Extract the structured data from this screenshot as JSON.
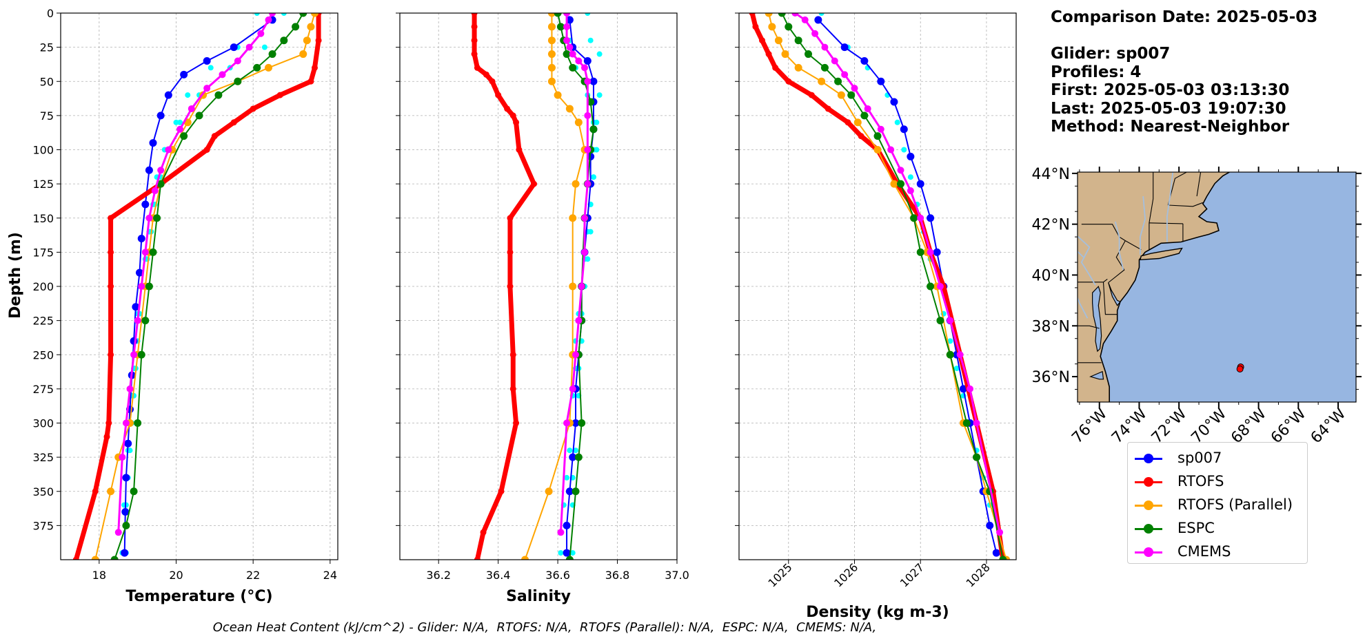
{
  "info": {
    "date_line": "Comparison Date: 2025-05-03",
    "glider_line": "Glider: sp007",
    "profiles_line": "Profiles: 4",
    "first_line": "First: 2025-05-03 03:13:30",
    "last_line": "Last: 2025-05-03 19:07:30",
    "method_line": "Method: Nearest-Neighbor"
  },
  "footer": "Ocean Heat Content (kJ/cm^2) - Glider: N/A,  RTOFS: N/A,  RTOFS (Parallel): N/A,  ESPC: N/A,  CMEMS: N/A,",
  "legend": [
    {
      "name": "sp007",
      "color": "#0000ff"
    },
    {
      "name": "RTOFS",
      "color": "#ff0000"
    },
    {
      "name": "RTOFS (Parallel)",
      "color": "#ffa500"
    },
    {
      "name": "ESPC",
      "color": "#008000"
    },
    {
      "name": "CMEMS",
      "color": "#ff00ff"
    }
  ],
  "chart_data": [
    {
      "type": "line",
      "xlabel": "Temperature (°C)",
      "ylabel": "Depth (m)",
      "xlim": [
        17,
        24.2
      ],
      "ylim": [
        400,
        0
      ],
      "xticks": [
        18,
        20,
        22,
        24
      ],
      "yticks": [
        0,
        25,
        50,
        75,
        100,
        125,
        150,
        175,
        200,
        225,
        250,
        275,
        300,
        325,
        350,
        375
      ],
      "grid": true,
      "series": [
        {
          "name": "sp007 (individual profiles)",
          "color": "#00ffff",
          "style": "dots",
          "x": [
            22.1,
            21.6,
            20.9,
            20.3,
            20.0,
            19.7,
            19.5,
            19.4,
            19.3,
            19.2,
            19.1,
            19.0,
            18.95,
            18.9,
            18.85,
            18.8,
            18.75,
            18.7,
            18.65,
            18.6
          ],
          "y": [
            0,
            25,
            40,
            60,
            80,
            100,
            120,
            140,
            160,
            180,
            200,
            220,
            240,
            260,
            280,
            300,
            320,
            340,
            360,
            395
          ]
        },
        {
          "name": "sp007 (individual profiles)",
          "color": "#00ffff",
          "style": "dots",
          "x": [
            22.8,
            22.3,
            21.4,
            20.6,
            20.1,
            19.8,
            19.6,
            19.45,
            19.35,
            19.25,
            19.15,
            19.05,
            19.0,
            18.95,
            18.9,
            18.85,
            18.8,
            18.75,
            18.7,
            18.7
          ],
          "y": [
            0,
            25,
            40,
            60,
            80,
            100,
            120,
            140,
            160,
            180,
            200,
            220,
            240,
            260,
            280,
            300,
            320,
            340,
            360,
            395
          ]
        },
        {
          "name": "sp007",
          "color": "#0000ff",
          "x": [
            22.5,
            21.5,
            20.8,
            20.2,
            19.8,
            19.6,
            19.4,
            19.3,
            19.2,
            19.1,
            19.05,
            18.95,
            18.9,
            18.85,
            18.8,
            18.75,
            18.7,
            18.68,
            18.66
          ],
          "y": [
            5,
            25,
            35,
            45,
            60,
            75,
            95,
            115,
            140,
            165,
            190,
            215,
            240,
            265,
            290,
            315,
            340,
            365,
            395
          ]
        },
        {
          "name": "RTOFS",
          "color": "#ff0000",
          "x": [
            23.7,
            23.7,
            23.6,
            23.5,
            22.7,
            22.0,
            21.5,
            21.0,
            20.8,
            19.6,
            18.3,
            18.3,
            18.3,
            18.3,
            18.25,
            18.2,
            17.9,
            17.4
          ],
          "y": [
            0,
            20,
            40,
            50,
            60,
            70,
            80,
            90,
            100,
            125,
            150,
            175,
            200,
            250,
            300,
            310,
            350,
            400
          ]
        },
        {
          "name": "RTOFS (Parallel)",
          "color": "#ffa500",
          "x": [
            23.6,
            23.5,
            23.4,
            23.3,
            22.4,
            21.6,
            20.7,
            20.3,
            19.9,
            19.6,
            19.4,
            19.3,
            19.2,
            19.0,
            18.8,
            18.5,
            18.3,
            17.9
          ],
          "y": [
            0,
            10,
            20,
            30,
            40,
            50,
            60,
            80,
            100,
            125,
            150,
            175,
            200,
            250,
            300,
            325,
            350,
            400
          ]
        },
        {
          "name": "ESPC",
          "color": "#008000",
          "x": [
            23.3,
            23.1,
            22.8,
            22.5,
            22.1,
            21.6,
            21.1,
            20.6,
            20.2,
            19.6,
            19.5,
            19.4,
            19.3,
            19.2,
            19.1,
            19.0,
            18.9,
            18.7,
            18.4
          ],
          "y": [
            0,
            10,
            20,
            30,
            40,
            50,
            60,
            75,
            90,
            125,
            150,
            175,
            200,
            225,
            250,
            300,
            350,
            375,
            400
          ]
        },
        {
          "name": "CMEMS",
          "color": "#ff00ff",
          "x": [
            22.5,
            22.4,
            22.2,
            21.9,
            21.6,
            21.2,
            20.8,
            20.4,
            20.1,
            19.8,
            19.6,
            19.45,
            19.3,
            19.2,
            19.1,
            19.0,
            18.9,
            18.8,
            18.7,
            18.6,
            18.5
          ],
          "y": [
            0,
            5,
            15,
            25,
            35,
            45,
            55,
            70,
            85,
            100,
            115,
            130,
            150,
            175,
            200,
            225,
            250,
            275,
            300,
            325,
            380
          ]
        }
      ]
    },
    {
      "type": "line",
      "xlabel": "Salinity",
      "ylabel": "",
      "xlim": [
        36.07,
        37.0
      ],
      "ylim": [
        400,
        0
      ],
      "xticks": [
        36.2,
        36.4,
        36.6,
        36.8,
        37.0
      ],
      "grid": true,
      "series": [
        {
          "name": "sp007 (individual profiles)",
          "color": "#00ffff",
          "style": "dots",
          "x": [
            36.63,
            36.64,
            36.66,
            36.7,
            36.72,
            36.72,
            36.72,
            36.71,
            36.7,
            36.69,
            36.68,
            36.67,
            36.66,
            36.66,
            36.65,
            36.65,
            36.64,
            36.63,
            36.62,
            36.61
          ],
          "y": [
            0,
            20,
            40,
            60,
            80,
            100,
            120,
            140,
            160,
            180,
            200,
            220,
            240,
            260,
            280,
            300,
            320,
            340,
            360,
            395
          ]
        },
        {
          "name": "sp007 (individual profiles)",
          "color": "#00ffff",
          "style": "dots",
          "x": [
            36.7,
            36.71,
            36.74,
            36.74,
            36.73,
            36.73,
            36.72,
            36.71,
            36.71,
            36.7,
            36.69,
            36.68,
            36.68,
            36.67,
            36.67,
            36.66,
            36.66,
            36.65,
            36.65,
            36.65
          ],
          "y": [
            0,
            20,
            30,
            60,
            80,
            100,
            120,
            140,
            160,
            180,
            200,
            220,
            240,
            260,
            280,
            300,
            320,
            340,
            360,
            395
          ]
        },
        {
          "name": "sp007",
          "color": "#0000ff",
          "x": [
            36.64,
            36.65,
            36.7,
            36.72,
            36.72,
            36.72,
            36.71,
            36.71,
            36.7,
            36.69,
            36.68,
            36.68,
            36.67,
            36.66,
            36.66,
            36.65,
            36.64,
            36.63,
            36.63
          ],
          "y": [
            5,
            25,
            35,
            50,
            65,
            85,
            105,
            125,
            150,
            175,
            200,
            225,
            250,
            275,
            300,
            325,
            350,
            375,
            395
          ]
        },
        {
          "name": "RTOFS",
          "color": "#ff0000",
          "x": [
            36.32,
            36.32,
            36.32,
            36.32,
            36.33,
            36.36,
            36.38,
            36.4,
            36.43,
            36.45,
            36.46,
            36.47,
            36.52,
            36.44,
            36.44,
            36.44,
            36.45,
            36.45,
            36.46,
            36.41,
            36.35,
            36.33
          ],
          "y": [
            0,
            10,
            20,
            30,
            40,
            45,
            50,
            60,
            70,
            75,
            80,
            100,
            125,
            150,
            175,
            200,
            250,
            275,
            300,
            350,
            380,
            400
          ]
        },
        {
          "name": "RTOFS (Parallel)",
          "color": "#ffa500",
          "x": [
            36.58,
            36.58,
            36.58,
            36.58,
            36.58,
            36.58,
            36.6,
            36.64,
            36.67,
            36.69,
            36.66,
            36.65,
            36.65,
            36.65,
            36.64,
            36.57,
            36.49
          ],
          "y": [
            0,
            10,
            20,
            30,
            40,
            50,
            60,
            70,
            80,
            100,
            125,
            150,
            200,
            250,
            300,
            350,
            400
          ]
        },
        {
          "name": "ESPC",
          "color": "#008000",
          "x": [
            36.6,
            36.61,
            36.62,
            36.63,
            36.65,
            36.69,
            36.71,
            36.72,
            36.71,
            36.7,
            36.69,
            36.68,
            36.68,
            36.67,
            36.68,
            36.67,
            36.66,
            36.64
          ],
          "y": [
            0,
            10,
            20,
            30,
            40,
            50,
            65,
            85,
            100,
            125,
            150,
            200,
            225,
            250,
            300,
            325,
            350,
            400
          ]
        },
        {
          "name": "CMEMS",
          "color": "#ff00ff",
          "x": [
            36.63,
            36.63,
            36.63,
            36.64,
            36.65,
            36.67,
            36.69,
            36.7,
            36.7,
            36.7,
            36.7,
            36.69,
            36.69,
            36.68,
            36.67,
            36.66,
            36.65,
            36.63,
            36.61
          ],
          "y": [
            0,
            10,
            20,
            25,
            30,
            35,
            40,
            50,
            75,
            100,
            125,
            150,
            175,
            200,
            225,
            250,
            275,
            300,
            380
          ]
        }
      ]
    },
    {
      "type": "line",
      "xlabel": "Density (kg m-3)",
      "ylabel": "",
      "xlim": [
        1024.25,
        1028.45
      ],
      "ylim": [
        400,
        0
      ],
      "xticks": [
        1025,
        1026,
        1027,
        1028
      ],
      "grid": true,
      "series": [
        {
          "name": "sp007 (individual profiles)",
          "color": "#00ffff",
          "style": "dots",
          "x": [
            1025.5,
            1025.9,
            1026.2,
            1026.5,
            1026.65,
            1026.75,
            1026.85,
            1026.95,
            1027.05,
            1027.15,
            1027.25,
            1027.35,
            1027.45,
            1027.55,
            1027.65,
            1027.75,
            1027.85,
            1027.95,
            1028.05,
            1028.15
          ],
          "y": [
            0,
            25,
            40,
            60,
            80,
            100,
            120,
            140,
            160,
            180,
            200,
            220,
            240,
            260,
            280,
            300,
            320,
            340,
            360,
            395
          ]
        },
        {
          "name": "sp007",
          "color": "#0000ff",
          "x": [
            1025.45,
            1025.85,
            1026.15,
            1026.4,
            1026.6,
            1026.75,
            1026.85,
            1027.0,
            1027.15,
            1027.25,
            1027.35,
            1027.45,
            1027.55,
            1027.65,
            1027.75,
            1027.85,
            1027.95,
            1028.05,
            1028.15
          ],
          "y": [
            5,
            25,
            35,
            50,
            65,
            85,
            105,
            125,
            150,
            175,
            200,
            225,
            250,
            275,
            300,
            325,
            350,
            375,
            395
          ]
        },
        {
          "name": "RTOFS",
          "color": "#ff0000",
          "x": [
            1024.45,
            1024.5,
            1024.6,
            1024.7,
            1024.8,
            1025.0,
            1025.35,
            1025.6,
            1025.9,
            1026.1,
            1026.35,
            1026.65,
            1027.0,
            1027.15,
            1027.35,
            1027.6,
            1027.85,
            1028.1,
            1028.25
          ],
          "y": [
            0,
            10,
            20,
            30,
            40,
            50,
            60,
            70,
            80,
            90,
            100,
            125,
            150,
            175,
            200,
            250,
            300,
            350,
            400
          ]
        },
        {
          "name": "RTOFS (Parallel)",
          "color": "#ffa500",
          "x": [
            1024.7,
            1024.75,
            1024.85,
            1024.95,
            1025.15,
            1025.5,
            1025.8,
            1026.05,
            1026.35,
            1026.6,
            1026.9,
            1027.1,
            1027.25,
            1027.45,
            1027.65,
            1027.85,
            1028.0,
            1028.3
          ],
          "y": [
            0,
            10,
            20,
            30,
            40,
            50,
            60,
            80,
            100,
            125,
            150,
            175,
            200,
            250,
            300,
            325,
            350,
            400
          ]
        },
        {
          "name": "ESPC",
          "color": "#008000",
          "x": [
            1024.9,
            1025.0,
            1025.15,
            1025.3,
            1025.55,
            1025.75,
            1025.95,
            1026.15,
            1026.35,
            1026.7,
            1026.9,
            1027.0,
            1027.15,
            1027.3,
            1027.45,
            1027.7,
            1027.85,
            1028.05,
            1028.25
          ],
          "y": [
            0,
            10,
            20,
            30,
            40,
            50,
            60,
            75,
            90,
            125,
            150,
            175,
            200,
            225,
            250,
            300,
            325,
            350,
            400
          ]
        },
        {
          "name": "CMEMS",
          "color": "#ff00ff",
          "x": [
            1025.1,
            1025.25,
            1025.4,
            1025.55,
            1025.7,
            1025.85,
            1026.0,
            1026.2,
            1026.4,
            1026.55,
            1026.7,
            1026.85,
            1027.0,
            1027.15,
            1027.3,
            1027.45,
            1027.6,
            1027.75,
            1027.85,
            1028.2
          ],
          "y": [
            0,
            5,
            15,
            25,
            35,
            45,
            55,
            70,
            85,
            100,
            115,
            130,
            150,
            175,
            200,
            225,
            250,
            275,
            300,
            380
          ]
        }
      ]
    }
  ],
  "map": {
    "lat_labels": [
      "44°N",
      "42°N",
      "40°N",
      "38°N",
      "36°N"
    ],
    "lat_values": [
      44,
      42,
      40,
      38,
      36
    ],
    "lon_labels": [
      "76°W",
      "74°W",
      "72°W",
      "70°W",
      "68°W",
      "66°W",
      "64°W"
    ],
    "lon_values": [
      -76,
      -74,
      -72,
      -70,
      -68,
      -66,
      -64
    ],
    "lon_range": [
      -77.1,
      -63.1
    ],
    "lat_range": [
      35.0,
      44.05
    ],
    "glider_position": {
      "lon": -68.9,
      "lat": 36.3
    },
    "ocean_color": "#97b6e1",
    "land_color": "#d2b48c",
    "river_color": "#a5bfdd"
  }
}
